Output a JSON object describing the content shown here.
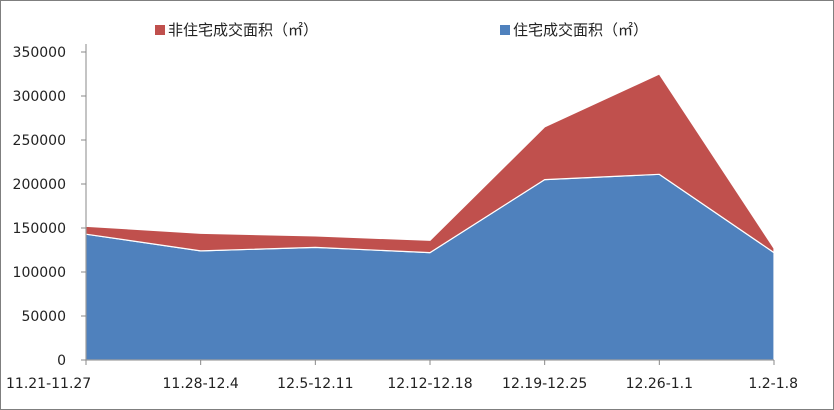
{
  "chart_data": {
    "type": "area",
    "stacked": true,
    "title": "",
    "xlabel": "",
    "ylabel": "",
    "categories": [
      "11.21-11.27",
      "11.28-12.4",
      "12.5-12.11",
      "12.12-12.18",
      "12.19-12.25",
      "12.26-1.1",
      "1.2-1.8"
    ],
    "series": [
      {
        "name": "住宅成交面积（㎡）",
        "color": "#4F81BD",
        "values": [
          143000,
          124000,
          128000,
          122000,
          205000,
          211000,
          122000
        ]
      },
      {
        "name": "非住宅成交面积（㎡）",
        "color": "#C0504D",
        "values": [
          9000,
          20000,
          13000,
          14000,
          60000,
          114000,
          5000
        ]
      }
    ],
    "ylim": [
      0,
      350000
    ],
    "yticks": [
      0,
      50000,
      100000,
      150000,
      200000,
      250000,
      300000,
      350000
    ],
    "grid": false,
    "legend": "top",
    "legend_order": [
      "非住宅成交面积（㎡）",
      "住宅成交面积（㎡）"
    ]
  }
}
